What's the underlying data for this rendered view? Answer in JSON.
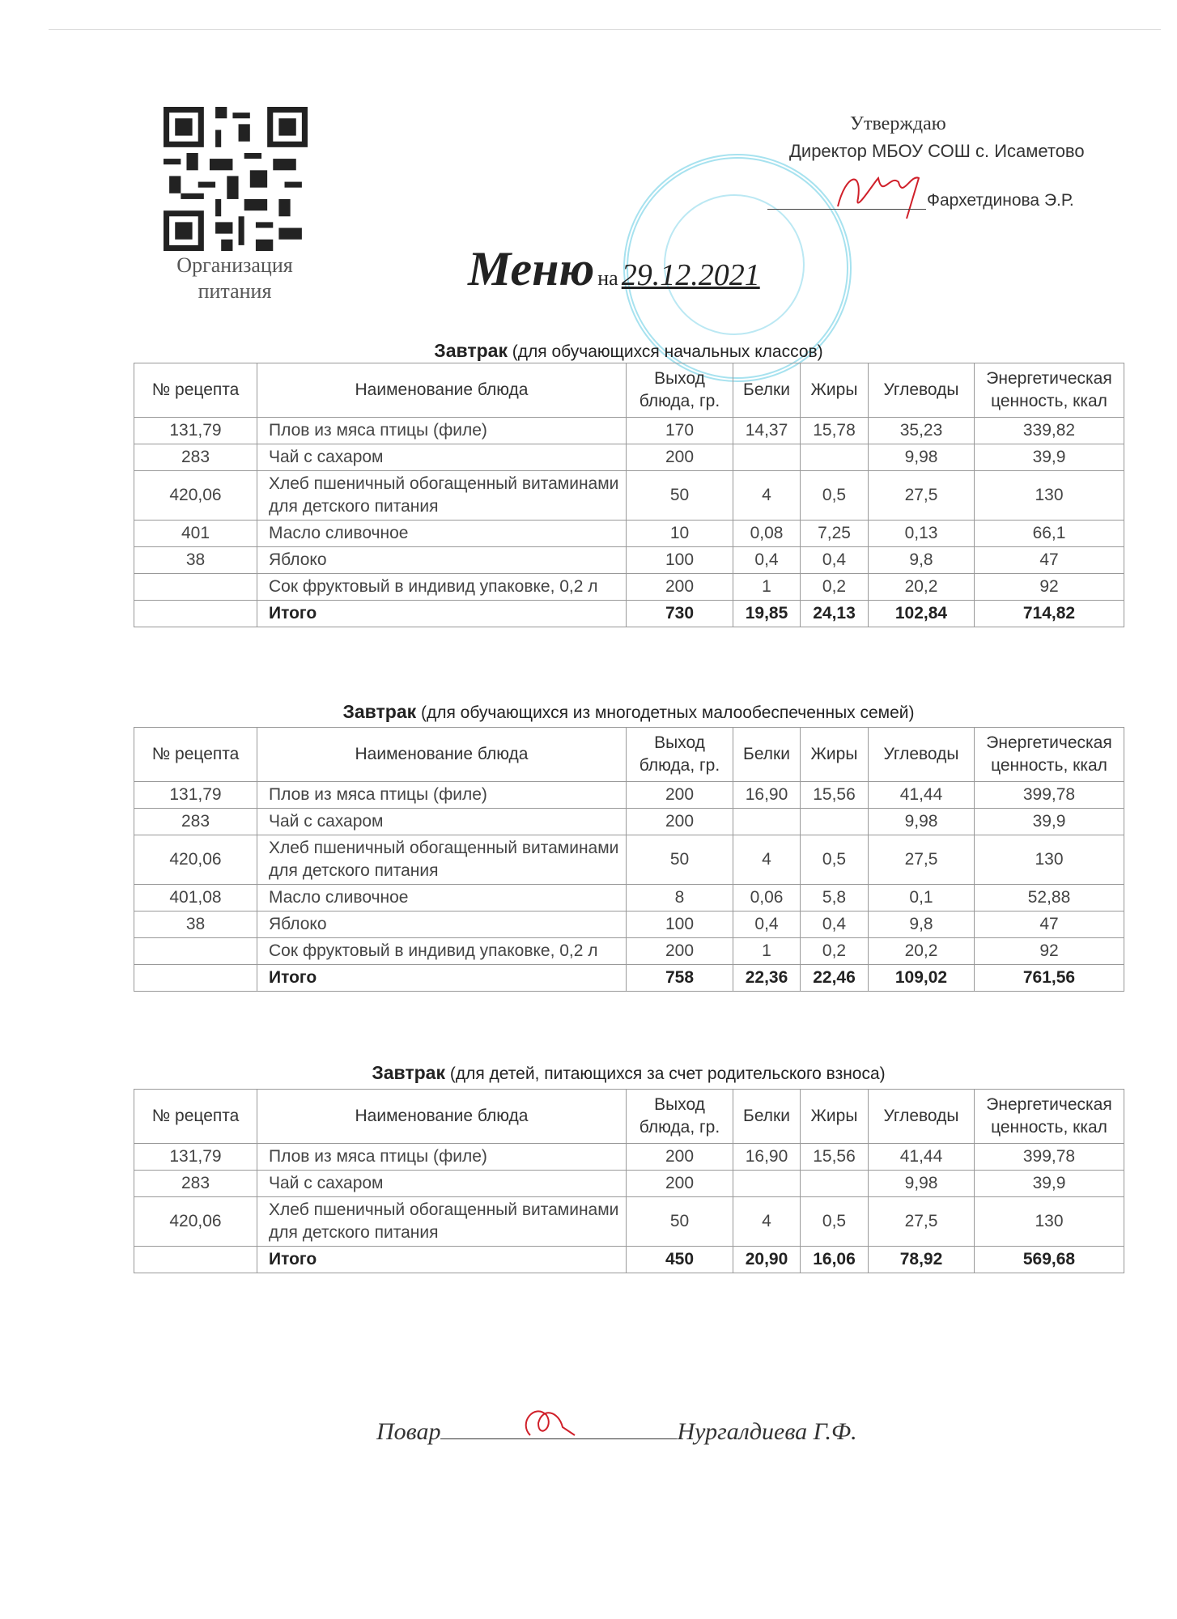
{
  "org_label": "Организация питания",
  "approval": {
    "word": "Утверждаю",
    "position": "Директор МБОУ СОШ с. Исаметово",
    "name": "Фархетдинова Э.Р."
  },
  "title": {
    "main": "Меню",
    "prep": "на",
    "date": "29.12.2021"
  },
  "headers": [
    "№ рецепта",
    "Наименование блюда",
    "Выход блюда, гр.",
    "Белки",
    "Жиры",
    "Углеводы",
    "Энергетическая ценность, ккал"
  ],
  "sections": [
    {
      "title_bold": "Завтрак",
      "title_rest": "(для обучающихся начальных классов)",
      "rows": [
        [
          "131,79",
          "Плов из мяса птицы (филе)",
          "170",
          "14,37",
          "15,78",
          "35,23",
          "339,82"
        ],
        [
          "283",
          "Чай с сахаром",
          "200",
          "",
          "",
          "9,98",
          "39,9"
        ],
        [
          "420,06",
          "Хлеб пшеничный обогащенный витаминами для детского питания",
          "50",
          "4",
          "0,5",
          "27,5",
          "130"
        ],
        [
          "401",
          "Масло сливочное",
          "10",
          "0,08",
          "7,25",
          "0,13",
          "66,1"
        ],
        [
          "38",
          "Яблоко",
          "100",
          "0,4",
          "0,4",
          "9,8",
          "47"
        ],
        [
          "",
          "Сок фруктовый в индивид упаковке, 0,2 л",
          "200",
          "1",
          "0,2",
          "20,2",
          "92"
        ]
      ],
      "total": [
        "",
        "Итого",
        "730",
        "19,85",
        "24,13",
        "102,84",
        "714,82"
      ]
    },
    {
      "title_bold": "Завтрак",
      "title_rest": "(для обучающихся из многодетных малообеспеченных семей)",
      "rows": [
        [
          "131,79",
          "Плов из мяса птицы (филе)",
          "200",
          "16,90",
          "15,56",
          "41,44",
          "399,78"
        ],
        [
          "283",
          "Чай с сахаром",
          "200",
          "",
          "",
          "9,98",
          "39,9"
        ],
        [
          "420,06",
          "Хлеб пшеничный обогащенный витаминами для детского питания",
          "50",
          "4",
          "0,5",
          "27,5",
          "130"
        ],
        [
          "401,08",
          "Масло сливочное",
          "8",
          "0,06",
          "5,8",
          "0,1",
          "52,88"
        ],
        [
          "38",
          "Яблоко",
          "100",
          "0,4",
          "0,4",
          "9,8",
          "47"
        ],
        [
          "",
          "Сок фруктовый в индивид упаковке, 0,2 л",
          "200",
          "1",
          "0,2",
          "20,2",
          "92"
        ]
      ],
      "total": [
        "",
        "Итого",
        "758",
        "22,36",
        "22,46",
        "109,02",
        "761,56"
      ]
    },
    {
      "title_bold": "Завтрак",
      "title_rest": "(для детей, питающихся за счет родительского взноса)",
      "rows": [
        [
          "131,79",
          "Плов из мяса птицы (филе)",
          "200",
          "16,90",
          "15,56",
          "41,44",
          "399,78"
        ],
        [
          "283",
          "Чай с сахаром",
          "200",
          "",
          "",
          "9,98",
          "39,9"
        ],
        [
          "420,06",
          "Хлеб пшеничный обогащенный витаминами для детского питания",
          "50",
          "4",
          "0,5",
          "27,5",
          "130"
        ]
      ],
      "total": [
        "",
        "Итого",
        "450",
        "20,90",
        "16,06",
        "78,92",
        "569,68"
      ]
    }
  ],
  "footer": {
    "role": "Повар",
    "name": "Нургалдиева Г.Ф."
  },
  "colors": {
    "stamp": "#3cbedc",
    "signature": "#d0202a"
  }
}
